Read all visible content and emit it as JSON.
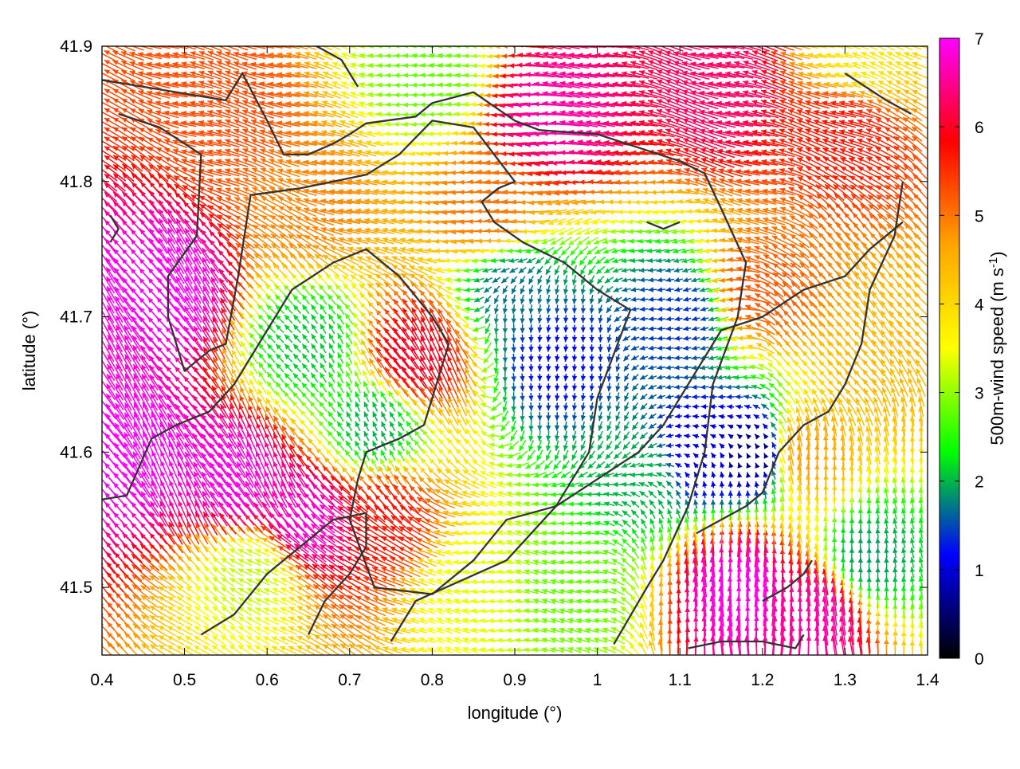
{
  "chart_data": {
    "type": "vector-field",
    "x_axis": {
      "label": "longitude (°)",
      "range": [
        0.4,
        1.4
      ],
      "ticks": [
        "0.4",
        "0.5",
        "0.6",
        "0.7",
        "0.8",
        "0.9",
        "1",
        "1.1",
        "1.2",
        "1.3",
        "1.4"
      ],
      "tick_values": [
        0.4,
        0.5,
        0.6,
        0.7,
        0.8,
        0.9,
        1.0,
        1.1,
        1.2,
        1.3,
        1.4
      ]
    },
    "y_axis": {
      "label": "latitude (°)",
      "range": [
        41.45,
        41.9
      ],
      "ticks": [
        "41.5",
        "41.6",
        "41.7",
        "41.8",
        "41.9"
      ],
      "tick_values": [
        41.5,
        41.6,
        41.7,
        41.8,
        41.9
      ]
    },
    "colorbar": {
      "label": "500m-wind speed (m s-1)",
      "label_main": "500m-wind speed (m s",
      "label_sup": "-1",
      "label_end": ")",
      "range": [
        0,
        7
      ],
      "ticks": [
        "0",
        "1",
        "2",
        "3",
        "4",
        "5",
        "6",
        "7"
      ],
      "tick_values": [
        0,
        1,
        2,
        3,
        4,
        5,
        6,
        7
      ],
      "palette": [
        "#000000",
        "#0000ff",
        "#00ff00",
        "#ffff00",
        "#ffa500",
        "#ff0000",
        "#ff00ff"
      ]
    },
    "grid": false,
    "wind_speed_regions": [
      {
        "lon": 0.48,
        "lat": 41.72,
        "speed": 7.0
      },
      {
        "lon": 0.44,
        "lat": 41.6,
        "speed": 7.0
      },
      {
        "lon": 0.56,
        "lat": 41.58,
        "speed": 6.9
      },
      {
        "lon": 0.65,
        "lat": 41.55,
        "speed": 6.8
      },
      {
        "lon": 1.17,
        "lat": 41.5,
        "speed": 6.9
      },
      {
        "lon": 1.27,
        "lat": 41.48,
        "speed": 6.6
      },
      {
        "lon": 1.15,
        "lat": 41.87,
        "speed": 6.3
      },
      {
        "lon": 1.3,
        "lat": 41.84,
        "speed": 5.7
      },
      {
        "lon": 0.95,
        "lat": 41.85,
        "speed": 6.6
      },
      {
        "lon": 0.78,
        "lat": 41.67,
        "speed": 6.0
      },
      {
        "lon": 0.74,
        "lat": 41.55,
        "speed": 5.7
      },
      {
        "lon": 0.55,
        "lat": 41.85,
        "speed": 5.3
      },
      {
        "lon": 0.65,
        "lat": 41.78,
        "speed": 4.9
      },
      {
        "lon": 0.87,
        "lat": 41.78,
        "speed": 5.0
      },
      {
        "lon": 1.2,
        "lat": 41.72,
        "speed": 5.2
      },
      {
        "lon": 1.25,
        "lat": 41.6,
        "speed": 4.7
      },
      {
        "lon": 1.35,
        "lat": 41.66,
        "speed": 4.4
      },
      {
        "lon": 0.95,
        "lat": 41.67,
        "speed": 1.2
      },
      {
        "lon": 0.9,
        "lat": 41.72,
        "speed": 1.7
      },
      {
        "lon": 1.1,
        "lat": 41.7,
        "speed": 1.4
      },
      {
        "lon": 1.13,
        "lat": 41.6,
        "speed": 1.0
      },
      {
        "lon": 1.19,
        "lat": 41.6,
        "speed": 0.6
      },
      {
        "lon": 1.05,
        "lat": 41.58,
        "speed": 2.0
      },
      {
        "lon": 0.73,
        "lat": 41.62,
        "speed": 2.0
      },
      {
        "lon": 0.65,
        "lat": 41.68,
        "speed": 2.1
      },
      {
        "lon": 0.58,
        "lat": 41.51,
        "speed": 3.2
      },
      {
        "lon": 0.85,
        "lat": 41.5,
        "speed": 3.4
      },
      {
        "lon": 0.97,
        "lat": 41.5,
        "speed": 2.8
      },
      {
        "lon": 0.8,
        "lat": 41.88,
        "speed": 2.8
      },
      {
        "lon": 1.33,
        "lat": 41.52,
        "speed": 1.9
      },
      {
        "lon": 1.32,
        "lat": 41.89,
        "speed": 3.8
      }
    ],
    "wind_direction_regions": [
      {
        "lon": 0.46,
        "lat": 41.7,
        "dir_deg": 125
      },
      {
        "lon": 0.55,
        "lat": 41.58,
        "dir_deg": 120
      },
      {
        "lon": 0.6,
        "lat": 41.87,
        "dir_deg": 165
      },
      {
        "lon": 0.85,
        "lat": 41.8,
        "dir_deg": 180
      },
      {
        "lon": 1.15,
        "lat": 41.85,
        "dir_deg": 165
      },
      {
        "lon": 0.78,
        "lat": 41.65,
        "dir_deg": 120
      },
      {
        "lon": 0.95,
        "lat": 41.67,
        "dir_deg": 270
      },
      {
        "lon": 1.1,
        "lat": 41.7,
        "dir_deg": 190
      },
      {
        "lon": 1.18,
        "lat": 41.5,
        "dir_deg": 90
      },
      {
        "lon": 1.33,
        "lat": 41.57,
        "dir_deg": 95
      },
      {
        "lon": 0.6,
        "lat": 41.5,
        "dir_deg": 150
      },
      {
        "lon": 0.9,
        "lat": 41.5,
        "dir_deg": 170
      },
      {
        "lon": 1.3,
        "lat": 41.7,
        "dir_deg": 130
      }
    ],
    "contours": [
      [
        [
          0.4,
          41.875
        ],
        [
          0.45,
          41.87
        ],
        [
          0.55,
          41.86
        ],
        [
          0.57,
          41.88
        ],
        [
          0.6,
          41.845
        ],
        [
          0.62,
          41.82
        ],
        [
          0.65,
          41.82
        ],
        [
          0.68,
          41.828
        ],
        [
          0.7,
          41.835
        ],
        [
          0.72,
          41.843
        ],
        [
          0.78,
          41.848
        ],
        [
          0.8,
          41.858
        ],
        [
          0.85,
          41.866
        ],
        [
          0.9,
          41.845
        ],
        [
          0.93,
          41.838
        ],
        [
          1.0,
          41.835
        ],
        [
          1.05,
          41.825
        ],
        [
          1.1,
          41.815
        ],
        [
          1.13,
          41.806
        ],
        [
          1.15,
          41.78
        ],
        [
          1.18,
          41.74
        ],
        [
          1.17,
          41.7
        ],
        [
          1.14,
          41.65
        ],
        [
          1.13,
          41.6
        ],
        [
          1.11,
          41.56
        ],
        [
          1.08,
          41.52
        ],
        [
          1.06,
          41.5
        ],
        [
          1.02,
          41.458
        ]
      ],
      [
        [
          0.42,
          41.85
        ],
        [
          0.47,
          41.84
        ],
        [
          0.52,
          41.82
        ],
        [
          0.515,
          41.76
        ],
        [
          0.48,
          41.73
        ],
        [
          0.48,
          41.7
        ],
        [
          0.5,
          41.66
        ],
        [
          0.53,
          41.675
        ],
        [
          0.55,
          41.68
        ],
        [
          0.565,
          41.73
        ],
        [
          0.58,
          41.79
        ],
        [
          0.64,
          41.795
        ],
        [
          0.72,
          41.805
        ],
        [
          0.76,
          41.82
        ],
        [
          0.8,
          41.845
        ],
        [
          0.85,
          41.84
        ],
        [
          0.9,
          41.8
        ],
        [
          0.88,
          41.795
        ],
        [
          0.86,
          41.785
        ],
        [
          0.875,
          41.77
        ],
        [
          0.91,
          41.755
        ],
        [
          0.96,
          41.74
        ],
        [
          1.0,
          41.72
        ],
        [
          1.04,
          41.705
        ],
        [
          1.0,
          41.64
        ],
        [
          0.99,
          41.6
        ],
        [
          0.95,
          41.56
        ],
        [
          0.89,
          41.52
        ],
        [
          0.78,
          41.49
        ],
        [
          0.75,
          41.46
        ]
      ],
      [
        [
          0.4,
          41.565
        ],
        [
          0.43,
          41.568
        ],
        [
          0.46,
          41.61
        ],
        [
          0.49,
          41.62
        ],
        [
          0.53,
          41.63
        ],
        [
          0.56,
          41.65
        ],
        [
          0.6,
          41.69
        ],
        [
          0.63,
          41.72
        ],
        [
          0.68,
          41.74
        ],
        [
          0.72,
          41.75
        ],
        [
          0.76,
          41.73
        ],
        [
          0.8,
          41.7
        ],
        [
          0.82,
          41.68
        ],
        [
          0.8,
          41.64
        ],
        [
          0.79,
          41.62
        ],
        [
          0.76,
          41.61
        ],
        [
          0.72,
          41.6
        ],
        [
          0.71,
          41.58
        ],
        [
          0.7,
          41.55
        ],
        [
          0.73,
          41.5
        ],
        [
          0.8,
          41.495
        ],
        [
          0.85,
          41.52
        ],
        [
          0.89,
          41.55
        ],
        [
          0.95,
          41.56
        ],
        [
          1.0,
          41.58
        ],
        [
          1.05,
          41.6
        ],
        [
          1.08,
          41.62
        ],
        [
          1.1,
          41.64
        ],
        [
          1.12,
          41.66
        ],
        [
          1.15,
          41.69
        ],
        [
          1.2,
          41.7
        ],
        [
          1.25,
          41.72
        ],
        [
          1.3,
          41.73
        ],
        [
          1.33,
          41.75
        ],
        [
          1.37,
          41.77
        ]
      ],
      [
        [
          0.52,
          41.465
        ],
        [
          0.56,
          41.48
        ],
        [
          0.6,
          41.51
        ],
        [
          0.64,
          41.53
        ],
        [
          0.68,
          41.55
        ],
        [
          0.72,
          41.555
        ],
        [
          0.72,
          41.53
        ],
        [
          0.7,
          41.51
        ],
        [
          0.67,
          41.49
        ],
        [
          0.65,
          41.465
        ]
      ],
      [
        [
          1.25,
          41.465
        ],
        [
          1.24,
          41.455
        ],
        [
          1.2,
          41.46
        ],
        [
          1.15,
          41.46
        ],
        [
          1.11,
          41.455
        ]
      ],
      [
        [
          1.12,
          41.54
        ],
        [
          1.15,
          41.55
        ],
        [
          1.18,
          41.56
        ],
        [
          1.2,
          41.57
        ],
        [
          1.22,
          41.6
        ],
        [
          1.25,
          41.62
        ],
        [
          1.28,
          41.63
        ],
        [
          1.3,
          41.65
        ],
        [
          1.32,
          41.68
        ],
        [
          1.33,
          41.72
        ],
        [
          1.36,
          41.76
        ],
        [
          1.37,
          41.8
        ]
      ],
      [
        [
          0.41,
          41.755
        ],
        [
          0.42,
          41.765
        ],
        [
          0.41,
          41.775
        ]
      ],
      [
        [
          1.06,
          41.77
        ],
        [
          1.08,
          41.765
        ],
        [
          1.1,
          41.77
        ]
      ],
      [
        [
          1.2,
          41.49
        ],
        [
          1.23,
          41.5
        ],
        [
          1.25,
          41.51
        ],
        [
          1.26,
          41.52
        ]
      ],
      [
        [
          1.3,
          41.88
        ],
        [
          1.35,
          41.86
        ],
        [
          1.38,
          41.85
        ]
      ],
      [
        [
          0.66,
          41.9
        ],
        [
          0.69,
          41.89
        ],
        [
          0.7,
          41.88
        ],
        [
          0.71,
          41.87
        ]
      ]
    ]
  }
}
